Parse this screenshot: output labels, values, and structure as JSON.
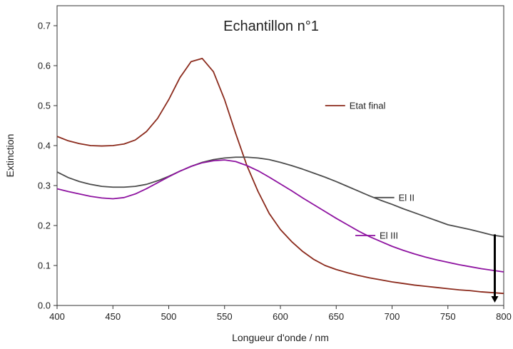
{
  "chart_data": {
    "type": "line",
    "title": "Echantillon n°1",
    "xlabel": "Longueur d'onde / nm",
    "ylabel": "Extinction",
    "xlim": [
      400,
      800
    ],
    "ylim": [
      0.0,
      0.75
    ],
    "xticks": [
      400,
      450,
      500,
      550,
      600,
      650,
      700,
      750,
      800
    ],
    "xtick_labels": [
      "400",
      "450",
      "500",
      "550",
      "600",
      "650",
      "700",
      "750",
      "800"
    ],
    "yticks": [
      0.0,
      0.1,
      0.2,
      0.3,
      0.4,
      0.5,
      0.6,
      0.7
    ],
    "ytick_labels": [
      "0.0",
      "0.1",
      "0.2",
      "0.3",
      "0.4",
      "0.5",
      "0.6",
      "0.7"
    ],
    "grid": false,
    "series": [
      {
        "name": "Etat final",
        "color": "#8b2a1c",
        "x": [
          400,
          410,
          420,
          430,
          440,
          450,
          460,
          470,
          480,
          490,
          500,
          510,
          520,
          530,
          540,
          550,
          560,
          570,
          580,
          590,
          600,
          610,
          620,
          630,
          640,
          650,
          660,
          670,
          680,
          690,
          700,
          710,
          720,
          730,
          740,
          750,
          760,
          770,
          780,
          790,
          800
        ],
        "y": [
          0.423,
          0.412,
          0.405,
          0.4,
          0.399,
          0.4,
          0.404,
          0.414,
          0.435,
          0.468,
          0.515,
          0.57,
          0.61,
          0.618,
          0.585,
          0.515,
          0.43,
          0.35,
          0.285,
          0.23,
          0.19,
          0.16,
          0.135,
          0.115,
          0.1,
          0.09,
          0.082,
          0.075,
          0.069,
          0.064,
          0.059,
          0.055,
          0.051,
          0.048,
          0.045,
          0.042,
          0.039,
          0.037,
          0.034,
          0.032,
          0.03
        ]
      },
      {
        "name": "El II",
        "color": "#4d4d4d",
        "x": [
          400,
          410,
          420,
          430,
          440,
          450,
          460,
          470,
          480,
          490,
          500,
          510,
          520,
          530,
          540,
          550,
          560,
          570,
          580,
          590,
          600,
          610,
          620,
          630,
          640,
          650,
          660,
          670,
          680,
          690,
          700,
          710,
          720,
          730,
          740,
          750,
          760,
          770,
          780,
          790,
          800
        ],
        "y": [
          0.334,
          0.32,
          0.31,
          0.303,
          0.298,
          0.296,
          0.296,
          0.298,
          0.303,
          0.312,
          0.323,
          0.336,
          0.348,
          0.358,
          0.365,
          0.369,
          0.371,
          0.371,
          0.369,
          0.365,
          0.358,
          0.35,
          0.341,
          0.331,
          0.321,
          0.31,
          0.298,
          0.286,
          0.274,
          0.263,
          0.253,
          0.242,
          0.232,
          0.222,
          0.212,
          0.202,
          0.196,
          0.19,
          0.183,
          0.176,
          0.172
        ]
      },
      {
        "name": "El III",
        "color": "#8e13a0",
        "x": [
          400,
          410,
          420,
          430,
          440,
          450,
          460,
          470,
          480,
          490,
          500,
          510,
          520,
          530,
          540,
          550,
          560,
          570,
          580,
          590,
          600,
          610,
          620,
          630,
          640,
          650,
          660,
          670,
          680,
          690,
          700,
          710,
          720,
          730,
          740,
          750,
          760,
          770,
          780,
          790,
          800
        ],
        "y": [
          0.292,
          0.285,
          0.279,
          0.273,
          0.269,
          0.267,
          0.27,
          0.279,
          0.292,
          0.307,
          0.322,
          0.336,
          0.348,
          0.357,
          0.362,
          0.364,
          0.36,
          0.35,
          0.337,
          0.321,
          0.304,
          0.287,
          0.269,
          0.252,
          0.235,
          0.218,
          0.202,
          0.186,
          0.172,
          0.16,
          0.148,
          0.138,
          0.129,
          0.121,
          0.114,
          0.108,
          0.102,
          0.097,
          0.092,
          0.088,
          0.084
        ]
      }
    ],
    "annotations": [
      {
        "text": "Etat final",
        "series": "Etat final",
        "leader_from": [
          658,
          0.5
        ]
      },
      {
        "text": "El II",
        "series": "El II",
        "leader_from": [
          702,
          0.27
        ]
      },
      {
        "text": "El III",
        "series": "El III",
        "leader_from": [
          685,
          0.175
        ]
      }
    ],
    "arrow": {
      "x": 792,
      "y_from": 0.178,
      "y_to": 0.0,
      "direction": "down"
    }
  }
}
